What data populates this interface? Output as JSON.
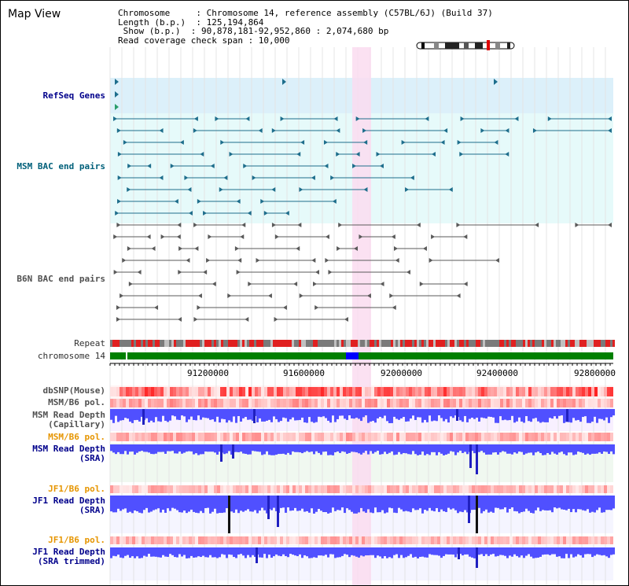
{
  "page": {
    "title": "Map View"
  },
  "info": {
    "line1": "Chromosome     : Chromosome 14, reference assembly (C57BL/6J) (Build 37)",
    "line2": "Length (b.p.)  : 125,194,864",
    "line3": " Show (b.p.)  : 90,878,181-92,952,860 : 2,074,680 bp",
    "line4": "Read coverage check span : 10,000"
  },
  "tracks": {
    "refseq": "RefSeq Genes",
    "msm_bac": "MSM BAC end pairs",
    "b6n_bac": "B6N BAC end pairs",
    "repeat": "Repeat",
    "chromosome": "chromosome 14",
    "dbsnp": "dbSNP(Mouse)",
    "msm_b6_pol_1": "MSM/B6 pol.",
    "msm_depth_cap_1": "MSM Read Depth",
    "msm_depth_cap_2": "(Capillary)",
    "msm_b6_pol_2": "MSM/B6 pol.",
    "msm_depth_sra_1": "MSM Read Depth",
    "msm_depth_sra_2": "(SRA)",
    "jf1_b6_pol_1": "JF1/B6 pol.",
    "jf1_depth_1": "JF1 Read Depth",
    "jf1_depth_2": "(SRA)",
    "jf1_b6_pol_2": "JF1/B6 pol.",
    "jf1_depth_tr_1": "JF1 Read Depth",
    "jf1_depth_tr_2": "(SRA trimmed)"
  },
  "axis": {
    "ticks": [
      "91200000",
      "91600000",
      "92000000",
      "92400000",
      "92800000"
    ]
  },
  "colors": {
    "refseq_bg": "#dcf0fa",
    "bac_bg": "#e6fafa",
    "highlight": "#fadcf0",
    "msm_feature": "#1e6e8c",
    "b6n_feature": "#5a5a5a",
    "chromosome": "#008000",
    "chromosome_mark": "#0000ff",
    "depth": "#5050ff"
  }
}
